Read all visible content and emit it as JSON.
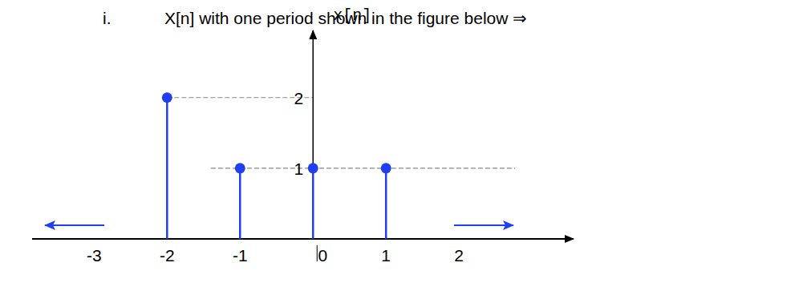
{
  "chart_data": {
    "type": "stem",
    "label": "i.",
    "title": "X[n] with one period shown in the figure below ⇒",
    "y_label": "x[n]",
    "x": [
      -2,
      -1,
      0,
      1
    ],
    "values": [
      2,
      1,
      1,
      1
    ],
    "color": "#1f3ff0",
    "marker": "circle",
    "xlim": [
      -3.85,
      3.57
    ],
    "ylim": [
      0,
      2.95
    ],
    "xticks": [
      -3,
      -2,
      -1,
      0,
      1,
      2
    ],
    "yticks": [
      1,
      2
    ],
    "grid": true
  }
}
